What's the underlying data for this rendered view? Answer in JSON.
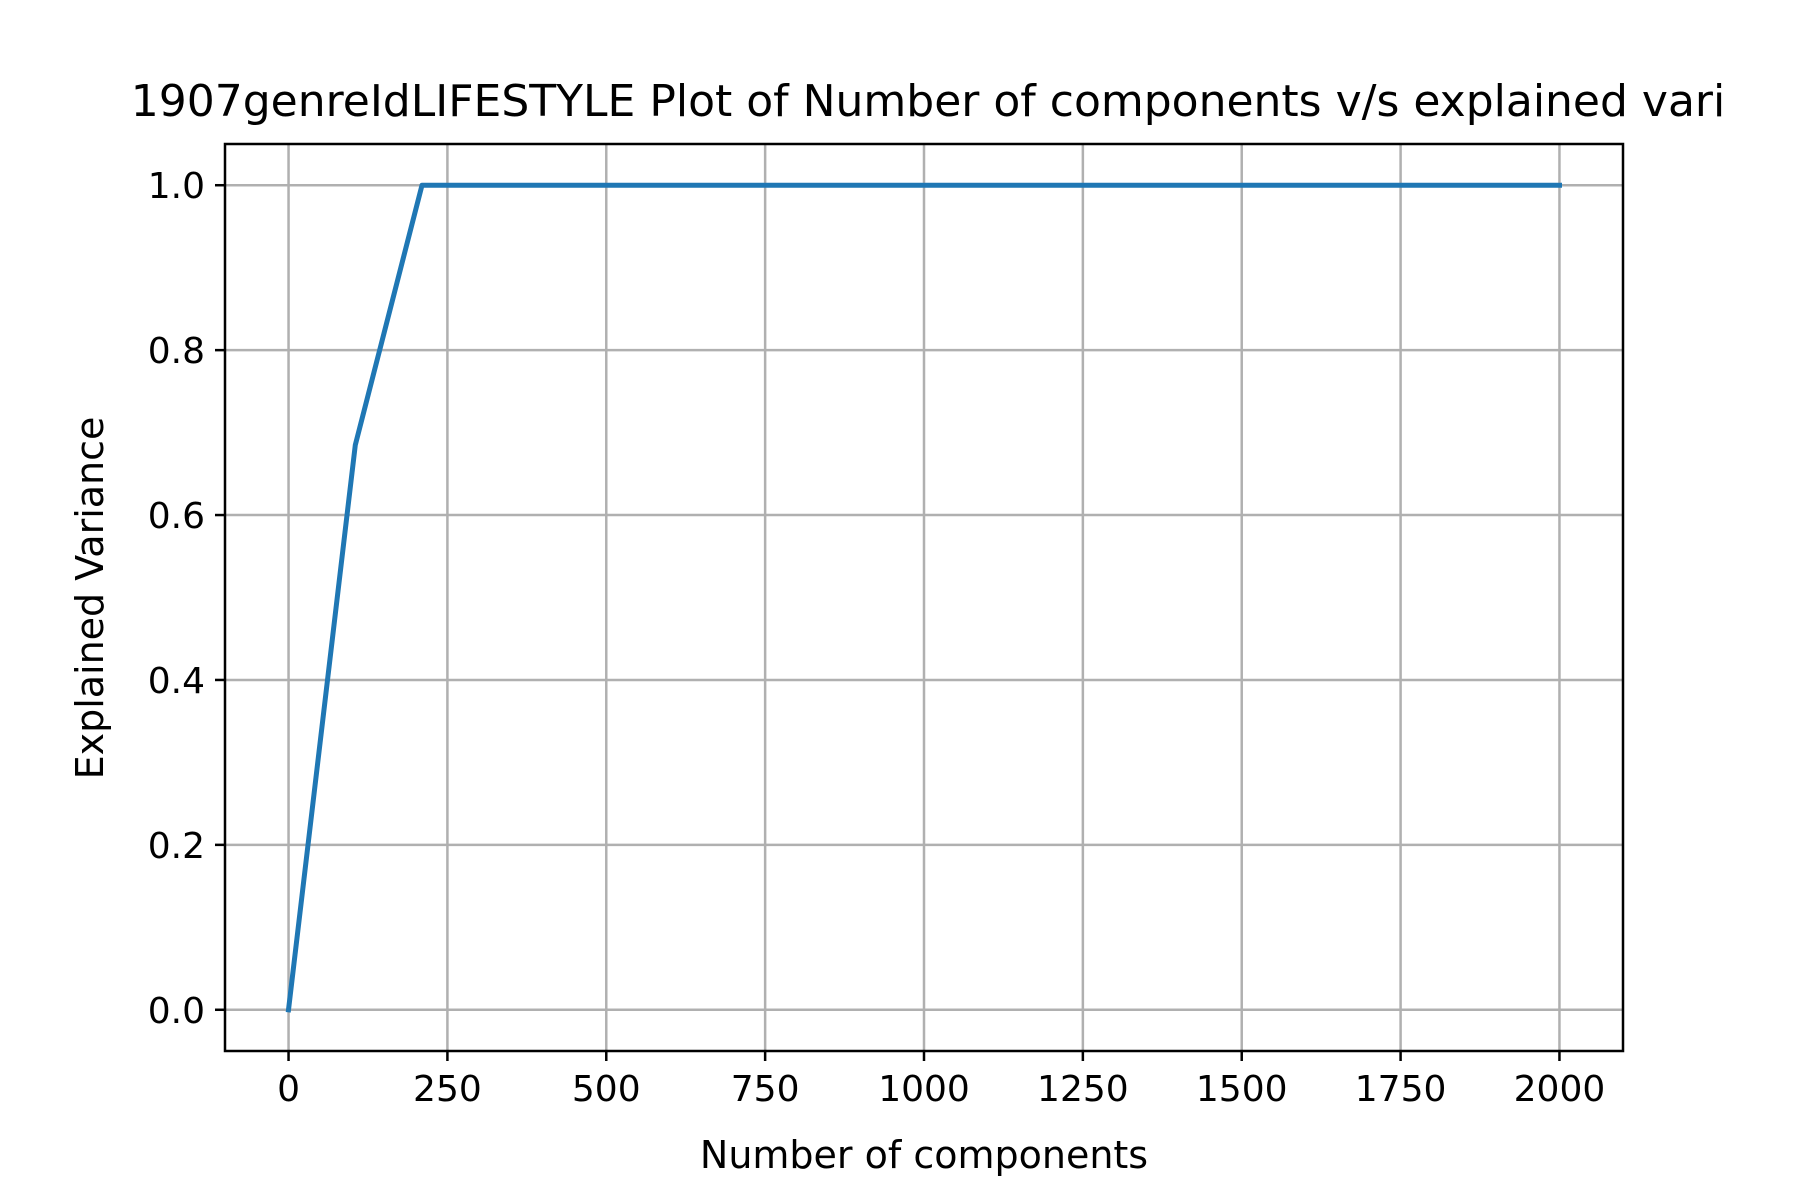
{
  "chart_data": {
    "type": "line",
    "title": "1907genreIdLIFESTYLE Plot of Number of components v/s explained vari",
    "xlabel": "Number of components",
    "ylabel": "Explained Variance",
    "xlim": [
      -100,
      2100
    ],
    "ylim": [
      -0.05,
      1.05
    ],
    "xticks": [
      0,
      250,
      500,
      750,
      1000,
      1250,
      1500,
      1750,
      2000
    ],
    "xtick_labels": [
      "0",
      "250",
      "500",
      "750",
      "1000",
      "1250",
      "1500",
      "1750",
      "2000"
    ],
    "yticks": [
      0.0,
      0.2,
      0.4,
      0.6,
      0.8,
      1.0
    ],
    "ytick_labels": [
      "0.0",
      "0.2",
      "0.4",
      "0.6",
      "0.8",
      "1.0"
    ],
    "grid": true,
    "series": [
      {
        "color": "#1f77b4",
        "x": [
          0,
          105,
          210,
          300,
          500,
          750,
          1000,
          1250,
          1500,
          1750,
          2000
        ],
        "y": [
          0.0,
          0.685,
          1.0,
          1.0,
          1.0,
          1.0,
          1.0,
          1.0,
          1.0,
          1.0,
          1.0
        ]
      }
    ]
  }
}
